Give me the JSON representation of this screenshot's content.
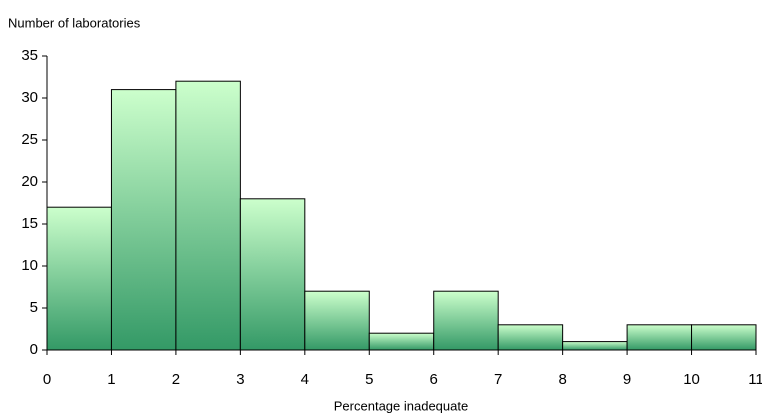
{
  "chart_data": {
    "type": "histogram",
    "y_label": "Number of laboratories",
    "x_label": "Percentage inadequate",
    "bins": [
      0,
      1,
      2,
      3,
      4,
      5,
      6,
      7,
      8,
      9,
      10,
      11
    ],
    "values": [
      17,
      31,
      32,
      18,
      7,
      2,
      7,
      3,
      1,
      3,
      3
    ],
    "colors": [
      "#ccffcc",
      "#339966"
    ],
    "xlim": [
      0,
      11
    ],
    "xticks": [
      0,
      1,
      2,
      3,
      4,
      5,
      6,
      7,
      8,
      9,
      10,
      11
    ],
    "ylim": [
      0,
      35
    ],
    "yticks": [
      0,
      5,
      10,
      15,
      20,
      25,
      30,
      35
    ]
  }
}
